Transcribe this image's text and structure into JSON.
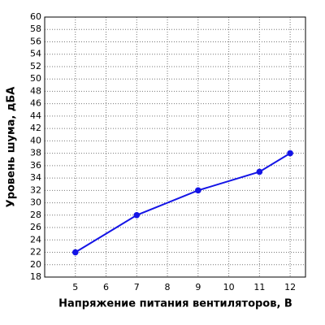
{
  "chart_data": {
    "type": "line",
    "x_label": "Напряжение питания вентиляторов, В",
    "y_label": "Уровень шума, дБА",
    "x": [
      5,
      7,
      9,
      11,
      12
    ],
    "values": [
      22,
      28,
      32,
      35,
      38
    ],
    "color": "#1414e6",
    "xlim": [
      4,
      12.5
    ],
    "xticks": [
      5,
      6,
      7,
      8,
      9,
      10,
      11,
      12
    ],
    "ylim": [
      18,
      60
    ],
    "yticks": [
      18,
      20,
      22,
      24,
      26,
      28,
      30,
      32,
      34,
      36,
      38,
      40,
      42,
      44,
      46,
      48,
      50,
      52,
      54,
      56,
      58,
      60
    ],
    "grid": true
  }
}
